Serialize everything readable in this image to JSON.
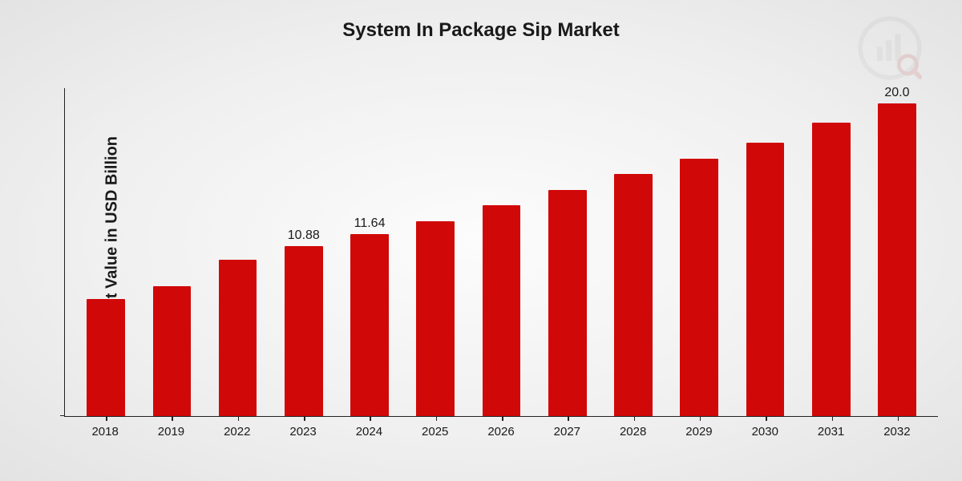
{
  "chart": {
    "type": "bar",
    "title": "System In Package Sip Market",
    "title_fontsize": 24,
    "ylabel": "Market Value in USD Billion",
    "ylabel_fontsize": 20,
    "categories": [
      "2018",
      "2019",
      "2022",
      "2023",
      "2024",
      "2025",
      "2026",
      "2027",
      "2028",
      "2029",
      "2030",
      "2031",
      "2032"
    ],
    "values": [
      7.5,
      8.3,
      10.0,
      10.88,
      11.64,
      12.5,
      13.5,
      14.5,
      15.5,
      16.5,
      17.5,
      18.8,
      20.0
    ],
    "value_labels": [
      "",
      "",
      "",
      "10.88",
      "11.64",
      "",
      "",
      "",
      "",
      "",
      "",
      "",
      "20.0"
    ],
    "bar_color": "#d10808",
    "ylim": [
      0,
      21
    ],
    "xlabel_fontsize": 15,
    "value_label_fontsize": 16,
    "bar_width_pct": 58,
    "axis_color": "#222222",
    "text_color": "#1a1a1a",
    "background": "radial-gradient(ellipse at center, #fcfcfc 0%, #efefef 60%, #e3e3e3 100%)",
    "logo_opacity": 0.15
  }
}
